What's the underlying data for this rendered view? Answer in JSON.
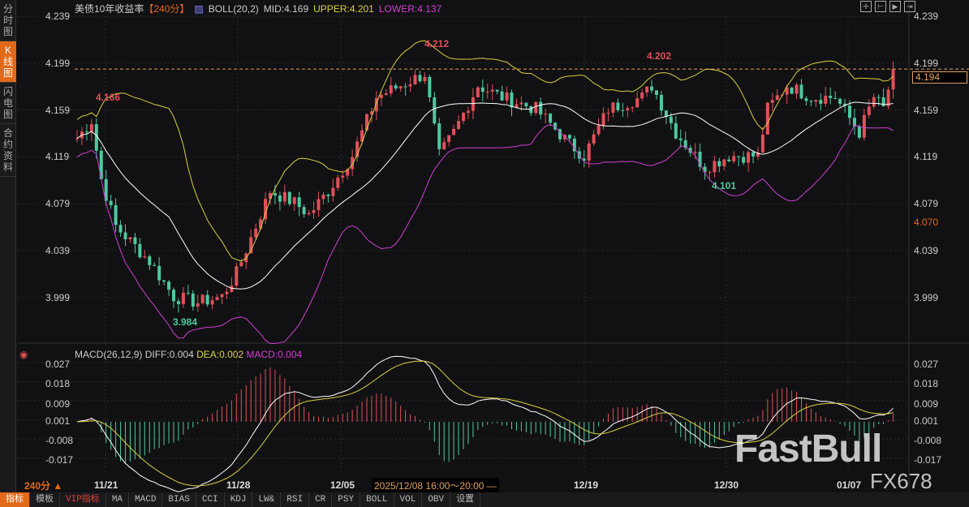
{
  "sidebar": {
    "tabs": [
      "分时图",
      "K线图",
      "闪电图",
      "合约资料"
    ],
    "active": 1
  },
  "header": {
    "title": "美债10年收益率",
    "period": "【240分】",
    "boll": "BOLL(20,2)",
    "mid": "MID:4.169",
    "upper": "UPPER:4.201",
    "lower": "LOWER:4.137"
  },
  "price_axis": [
    "4.239",
    "4.199",
    "4.159",
    "4.119",
    "4.079",
    "4.039",
    "3.999"
  ],
  "current_price": "4.194",
  "low_marker": "4.070",
  "annotations": {
    "high1": "4.166",
    "high2": "4.212",
    "high3": "4.202",
    "low1": "3.984",
    "low2": "4.101"
  },
  "macd": {
    "title": "MACD(26,12,9)",
    "diff": "DIFF:0.004",
    "dea": "DEA:0.002",
    "macd": "MACD:0.004",
    "axis": [
      "0.027",
      "0.018",
      "0.009",
      "0.001",
      "-0.008",
      "-0.017"
    ]
  },
  "dates": [
    "11/21",
    "11/28",
    "12/05",
    "12/19",
    "12/30",
    "01/07"
  ],
  "period_label": "240分 ▲",
  "tooltip": "2025/12/08 16:00～20:00 —",
  "toolbar": [
    "指标",
    "模板",
    "VIP指标",
    "MA",
    "MACD",
    "BIAS",
    "CCI",
    "KDJ",
    "LW&",
    "RSI",
    "CR",
    "PSY",
    "BOLL",
    "VOL",
    "OBV",
    "设置"
  ],
  "watermark": {
    "brand": "FastBull",
    "code": "FX678"
  },
  "colors": {
    "up": "#e0505a",
    "down": "#4fc9a0",
    "mid": "#ffffff",
    "upper": "#d8d040",
    "lower": "#d040d0",
    "accent": "#e06a1a"
  },
  "chart_data": {
    "type": "candlestick",
    "keypoints": [
      [
        0,
        4.135
      ],
      [
        3,
        4.15
      ],
      [
        5,
        4.1
      ],
      [
        8,
        4.06
      ],
      [
        15,
        4.03
      ],
      [
        20,
        4.0
      ],
      [
        25,
        3.995
      ],
      [
        30,
        4.0
      ],
      [
        33,
        4.02
      ],
      [
        37,
        4.06
      ],
      [
        40,
        4.09
      ],
      [
        45,
        4.08
      ],
      [
        48,
        4.07
      ],
      [
        52,
        4.09
      ],
      [
        57,
        4.12
      ],
      [
        62,
        4.17
      ],
      [
        67,
        4.18
      ],
      [
        72,
        4.19
      ],
      [
        75,
        4.12
      ],
      [
        78,
        4.14
      ],
      [
        83,
        4.18
      ],
      [
        88,
        4.17
      ],
      [
        95,
        4.16
      ],
      [
        102,
        4.13
      ],
      [
        105,
        4.12
      ],
      [
        110,
        4.16
      ],
      [
        117,
        4.17
      ],
      [
        119,
        4.18
      ],
      [
        124,
        4.14
      ],
      [
        130,
        4.11
      ],
      [
        135,
        4.12
      ],
      [
        141,
        4.12
      ],
      [
        143,
        4.16
      ],
      [
        147,
        4.18
      ],
      [
        152,
        4.17
      ],
      [
        157,
        4.17
      ],
      [
        162,
        4.14
      ],
      [
        165,
        4.17
      ],
      [
        167,
        4.16
      ],
      [
        169,
        4.194
      ]
    ]
  }
}
